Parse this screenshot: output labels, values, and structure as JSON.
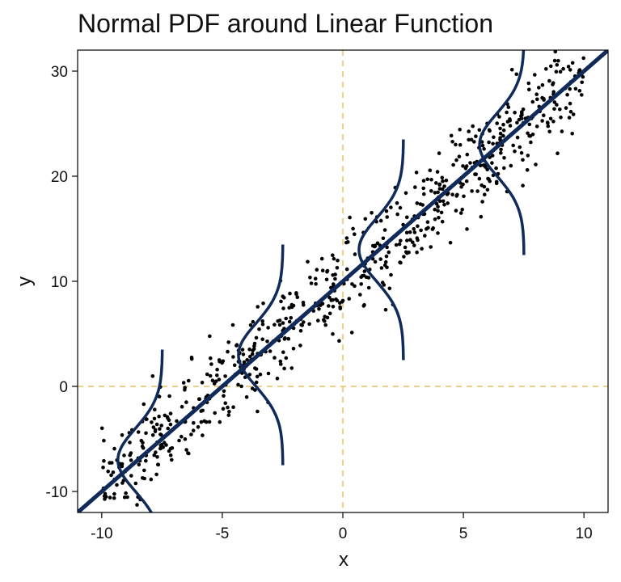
{
  "chart_data": {
    "type": "scatter",
    "title": "Normal PDF around Linear Function",
    "xlabel": "x",
    "ylabel": "y",
    "xlim": [
      -11,
      11
    ],
    "ylim": [
      -12,
      32
    ],
    "xticks": [
      -10,
      -5,
      0,
      5,
      10
    ],
    "yticks": [
      -10,
      0,
      10,
      20,
      30
    ],
    "tick_labels_x": [
      "-10",
      "-5",
      "0",
      "5",
      "10"
    ],
    "tick_labels_y": [
      "-10",
      "0",
      "10",
      "20",
      "30"
    ],
    "grid": false,
    "reference_lines": {
      "x": 0,
      "y": 0,
      "color": "#e8c060",
      "style": "dashed"
    },
    "line": {
      "slope": 2,
      "intercept": 10,
      "color": "#102a5a"
    },
    "pdf_curves": {
      "centers": [
        -8.5,
        -3.5,
        1.5,
        6.5
      ],
      "sd": 3,
      "color": "#102a5a",
      "range_sd": 3.5
    },
    "points": {
      "count": 700,
      "x_range": [
        -10,
        10
      ],
      "noise_sd": 2.2,
      "color": "#000000"
    },
    "colors": {
      "axis": "#000000",
      "background": "#ffffff"
    }
  }
}
